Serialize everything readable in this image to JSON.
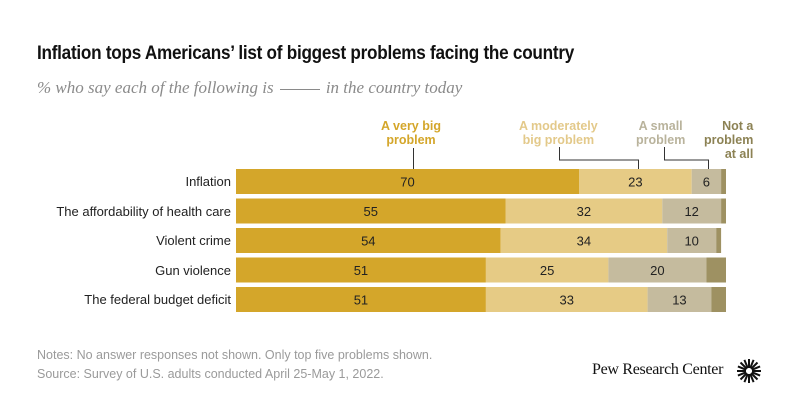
{
  "chart_data": {
    "type": "bar",
    "orientation": "horizontal-stacked",
    "title": "Inflation tops Americans’ list of biggest problems facing the country",
    "subtitle_before": "% who say each of the following is",
    "subtitle_after": "in the country today",
    "categories": [
      "Inflation",
      "The affordability of health care",
      "Violent crime",
      "Gun violence",
      "The federal budget deficit"
    ],
    "series": [
      {
        "name": "A very big problem",
        "color": "#d4a62a",
        "label_color": "#d4a62a",
        "values": [
          70,
          55,
          54,
          51,
          51
        ],
        "show_labels": true
      },
      {
        "name": "A moderately big problem",
        "color": "#e6cb85",
        "label_color": "#e3c98a",
        "values": [
          23,
          32,
          34,
          25,
          33
        ],
        "show_labels": true
      },
      {
        "name": "A small problem",
        "color": "#c5bb9e",
        "label_color": "#b9b39c",
        "values": [
          6,
          12,
          10,
          20,
          13
        ],
        "show_labels": true
      },
      {
        "name": "Not a problem at all",
        "color": "#9e9162",
        "label_color": "#8c8254",
        "values": [
          1,
          1,
          1,
          4,
          3
        ],
        "show_labels": false
      }
    ],
    "xlim": [
      0,
      100
    ],
    "grid": false,
    "legend_placement": "top, annotating first bar"
  },
  "legend_lines": {
    "very_big": [
      "A very big",
      "problem"
    ],
    "moderately": [
      "A moderately",
      "big problem"
    ],
    "small": [
      "A small",
      "problem"
    ],
    "not": [
      "Not a",
      "problem",
      "at all"
    ]
  },
  "footer": {
    "notes": "Notes: No answer responses not shown. Only top five problems shown.",
    "source": "Source: Survey of U.S. adults conducted April 25-May 1, 2022.",
    "brand": "Pew Research Center"
  }
}
